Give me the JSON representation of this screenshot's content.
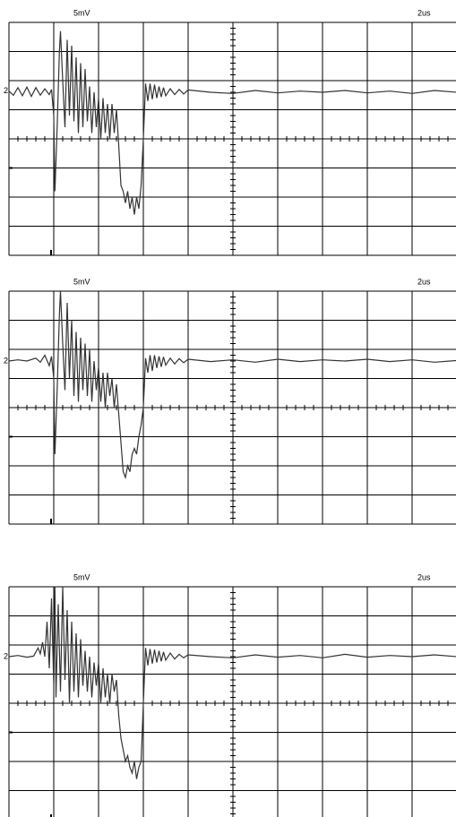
{
  "chart_data": [
    {
      "type": "line",
      "scale_label": "5mV",
      "time_label": "2us",
      "channel_label": "2",
      "color": "#333333",
      "grid": true,
      "xlim": [
        0,
        20
      ],
      "ylim": [
        -20,
        20
      ],
      "xticks": [
        0,
        2,
        4,
        6,
        8,
        10,
        12,
        14,
        16,
        18,
        20
      ],
      "yticks": [
        -20,
        -15,
        -10,
        -5,
        0,
        5,
        10,
        15,
        20
      ],
      "x": [
        0,
        0.2,
        0.4,
        0.6,
        0.8,
        1.0,
        1.2,
        1.4,
        1.6,
        1.8,
        1.9,
        2.0,
        2.05,
        2.15,
        2.25,
        2.3,
        2.4,
        2.5,
        2.6,
        2.7,
        2.8,
        2.9,
        3.0,
        3.1,
        3.2,
        3.3,
        3.4,
        3.5,
        3.6,
        3.7,
        3.8,
        3.9,
        4.0,
        4.1,
        4.2,
        4.3,
        4.4,
        4.5,
        4.6,
        4.7,
        4.8,
        4.9,
        5.0,
        5.1,
        5.2,
        5.3,
        5.4,
        5.5,
        5.6,
        5.7,
        5.8,
        5.9,
        6.0,
        6.1,
        6.2,
        6.3,
        6.4,
        6.5,
        6.6,
        6.7,
        6.8,
        6.9,
        7.0,
        7.2,
        7.4,
        7.6,
        7.8,
        8,
        9,
        10,
        11,
        12,
        13,
        14,
        15,
        16,
        17,
        18,
        19,
        20
      ],
      "values": [
        8.2,
        7.5,
        8.8,
        7.4,
        8.9,
        7.3,
        8.8,
        7.5,
        8.6,
        7.6,
        8.5,
        4,
        -9,
        2,
        15,
        18.5,
        10,
        2,
        17,
        4,
        16,
        3,
        14,
        1,
        13,
        2,
        12,
        3,
        9,
        1,
        8,
        2,
        7,
        0,
        7,
        1,
        6,
        0,
        6,
        1,
        5,
        -1,
        -8,
        -9,
        -11,
        -9,
        -12,
        -10,
        -13,
        -10,
        -12,
        -8,
        0,
        9.5,
        6.5,
        9.5,
        6.8,
        9.3,
        7,
        9,
        7.2,
        8.8,
        7.4,
        8.6,
        7.6,
        8.5,
        7.7,
        8.4,
        8,
        7.8,
        8.3,
        7.9,
        8.2,
        8,
        8.3,
        7.9,
        8.2,
        7.8,
        8.3,
        8
      ]
    },
    {
      "type": "line",
      "scale_label": "5mV",
      "time_label": "2us",
      "channel_label": "2",
      "color": "#333333",
      "grid": true,
      "xlim": [
        0,
        20
      ],
      "ylim": [
        -20,
        20
      ],
      "xticks": [
        0,
        2,
        4,
        6,
        8,
        10,
        12,
        14,
        16,
        18,
        20
      ],
      "yticks": [
        -20,
        -15,
        -10,
        -5,
        0,
        5,
        10,
        15,
        20
      ],
      "x": [
        0,
        0.4,
        0.8,
        1.2,
        1.4,
        1.6,
        1.8,
        1.9,
        2.0,
        2.05,
        2.15,
        2.25,
        2.3,
        2.4,
        2.5,
        2.6,
        2.7,
        2.8,
        2.9,
        3.0,
        3.1,
        3.2,
        3.3,
        3.4,
        3.5,
        3.6,
        3.7,
        3.8,
        3.9,
        4.0,
        4.1,
        4.2,
        4.3,
        4.4,
        4.5,
        4.6,
        4.7,
        4.8,
        4.9,
        5.0,
        5.1,
        5.2,
        5.3,
        5.4,
        5.5,
        5.6,
        5.7,
        5.8,
        5.9,
        6.0,
        6.1,
        6.2,
        6.3,
        6.4,
        6.5,
        6.6,
        6.7,
        6.8,
        6.9,
        7.0,
        7.2,
        7.4,
        7.6,
        7.8,
        8,
        9,
        10,
        11,
        12,
        13,
        14,
        15,
        16,
        17,
        18,
        19,
        20
      ],
      "values": [
        8.0,
        8.2,
        8.0,
        8.5,
        7.8,
        9.0,
        7.2,
        8.8,
        5,
        -8,
        3,
        16,
        20,
        11,
        3,
        18,
        5,
        15,
        2,
        13,
        1,
        12,
        3,
        11,
        2,
        10,
        1,
        8,
        3,
        7,
        1,
        6,
        0,
        6,
        2,
        5,
        0,
        4,
        -1,
        -6,
        -11,
        -12,
        -10,
        -11,
        -8,
        -7,
        -8,
        -5,
        -3,
        0,
        8.5,
        6.0,
        9.0,
        6.3,
        9.0,
        6.8,
        8.8,
        7.0,
        8.7,
        7.3,
        8.5,
        7.5,
        8.4,
        7.7,
        8.3,
        7.9,
        8.2,
        7.8,
        8.3,
        7.9,
        8.2,
        8.0,
        8.3,
        7.9,
        8.2,
        7.8,
        8.1
      ]
    },
    {
      "type": "line",
      "scale_label": "5mV",
      "time_label": "2us",
      "channel_label": "2",
      "color": "#333333",
      "grid": true,
      "xlim": [
        0,
        20
      ],
      "ylim": [
        -20,
        20
      ],
      "xticks": [
        0,
        2,
        4,
        6,
        8,
        10,
        12,
        14,
        16,
        18,
        20
      ],
      "yticks": [
        -20,
        -15,
        -10,
        -5,
        0,
        5,
        10,
        15,
        20
      ],
      "x": [
        0,
        0.4,
        0.8,
        1.1,
        1.3,
        1.4,
        1.5,
        1.6,
        1.7,
        1.8,
        1.9,
        2.0,
        2.05,
        2.1,
        2.2,
        2.3,
        2.4,
        2.5,
        2.6,
        2.7,
        2.8,
        2.9,
        3.0,
        3.1,
        3.2,
        3.3,
        3.4,
        3.5,
        3.6,
        3.7,
        3.8,
        3.9,
        4.0,
        4.1,
        4.2,
        4.3,
        4.4,
        4.5,
        4.6,
        4.7,
        4.8,
        4.9,
        5.0,
        5.1,
        5.2,
        5.3,
        5.4,
        5.5,
        5.6,
        5.7,
        5.8,
        5.9,
        6.0,
        6.1,
        6.2,
        6.3,
        6.4,
        6.5,
        6.6,
        6.7,
        6.8,
        6.9,
        7.0,
        7.2,
        7.4,
        7.6,
        7.8,
        8,
        9,
        10,
        11,
        12,
        13,
        14,
        15,
        16,
        17,
        18,
        19,
        20
      ],
      "values": [
        8.0,
        8.2,
        7.9,
        8.1,
        9.5,
        8.5,
        10.5,
        8,
        14,
        6,
        18,
        3,
        20,
        1,
        17,
        2,
        20,
        4,
        16,
        0,
        14,
        2,
        12,
        1,
        11,
        3,
        9,
        2,
        8,
        1,
        7,
        3,
        7,
        0,
        6,
        1,
        5,
        0,
        5,
        2,
        4,
        -2,
        -6,
        -8,
        -10,
        -9,
        -11,
        -12,
        -10,
        -13,
        -11,
        -10,
        0,
        9.5,
        6.5,
        9.3,
        6.8,
        9.2,
        7.0,
        9.0,
        7.2,
        8.8,
        7.4,
        8.6,
        7.6,
        8.4,
        7.8,
        8.3,
        8.0,
        7.8,
        8.3,
        7.9,
        8.2,
        7.8,
        8.4,
        7.9,
        8.2,
        8.0,
        8.3,
        8.0
      ]
    }
  ]
}
